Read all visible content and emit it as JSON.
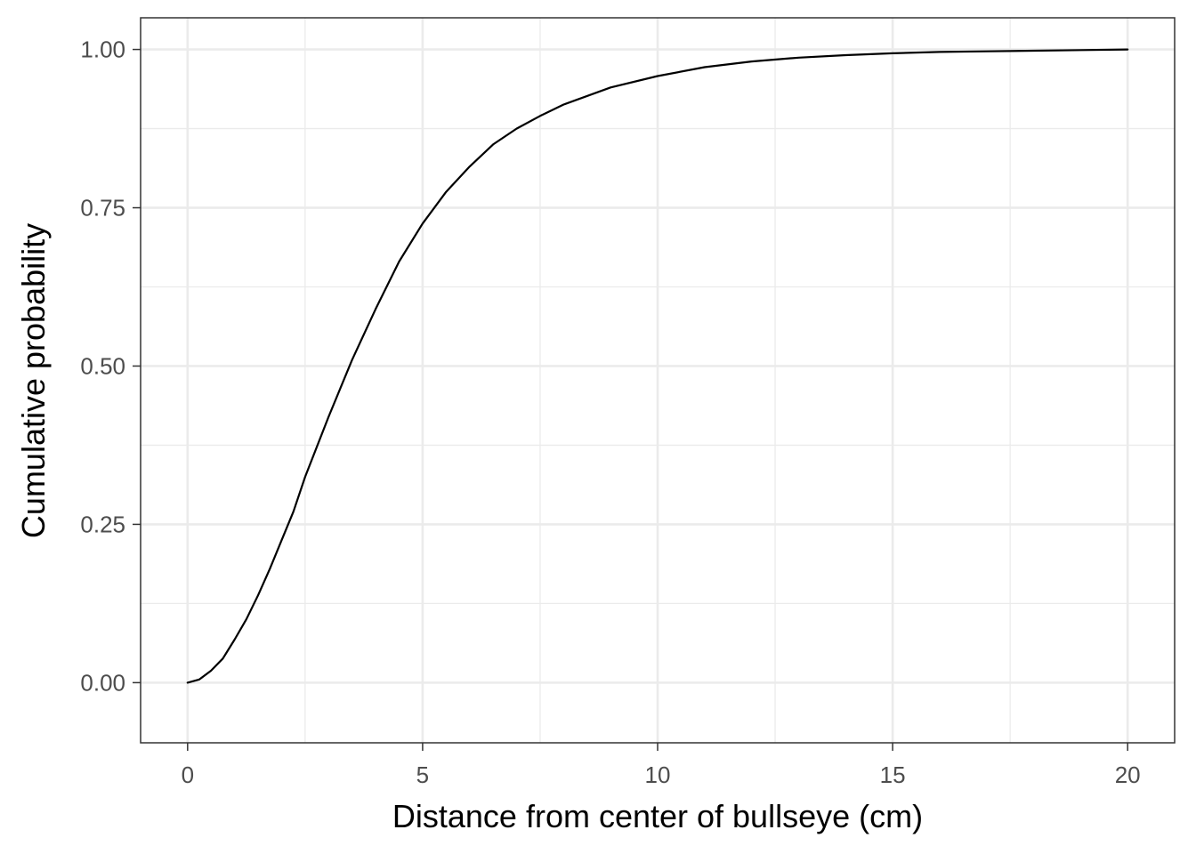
{
  "chart_data": {
    "type": "line",
    "title": "",
    "xlabel": "Distance from center of bullseye (cm)",
    "ylabel": "Cumulative probability",
    "xlim": [
      -1,
      21
    ],
    "ylim": [
      -0.095,
      1.05
    ],
    "x_ticks": [
      0,
      5,
      10,
      15,
      20
    ],
    "x_tick_labels": [
      "0",
      "5",
      "10",
      "15",
      "20"
    ],
    "y_ticks": [
      0,
      0.25,
      0.5,
      0.75,
      1
    ],
    "y_tick_labels": [
      "0.00",
      "0.25",
      "0.50",
      "0.75",
      "1.00"
    ],
    "x_minor_ticks": [
      2.5,
      7.5,
      12.5,
      17.5
    ],
    "y_minor_ticks": [
      0.125,
      0.375,
      0.625,
      0.875
    ],
    "grid": true,
    "legend": "none",
    "series": [
      {
        "color": "#000000",
        "x": [
          0,
          0.25,
          0.5,
          0.75,
          1,
          1.25,
          1.5,
          1.75,
          2,
          2.25,
          2.5,
          3,
          3.5,
          4,
          4.5,
          5,
          5.5,
          6,
          6.5,
          7,
          7.5,
          8,
          9,
          10,
          11,
          12,
          13,
          14,
          15,
          16,
          17,
          18,
          19,
          20
        ],
        "y": [
          0,
          0.005,
          0.019,
          0.038,
          0.068,
          0.1,
          0.138,
          0.18,
          0.225,
          0.27,
          0.325,
          0.42,
          0.51,
          0.59,
          0.665,
          0.725,
          0.775,
          0.815,
          0.85,
          0.875,
          0.895,
          0.913,
          0.94,
          0.958,
          0.972,
          0.981,
          0.987,
          0.991,
          0.994,
          0.996,
          0.997,
          0.998,
          0.999,
          1
        ]
      }
    ]
  }
}
